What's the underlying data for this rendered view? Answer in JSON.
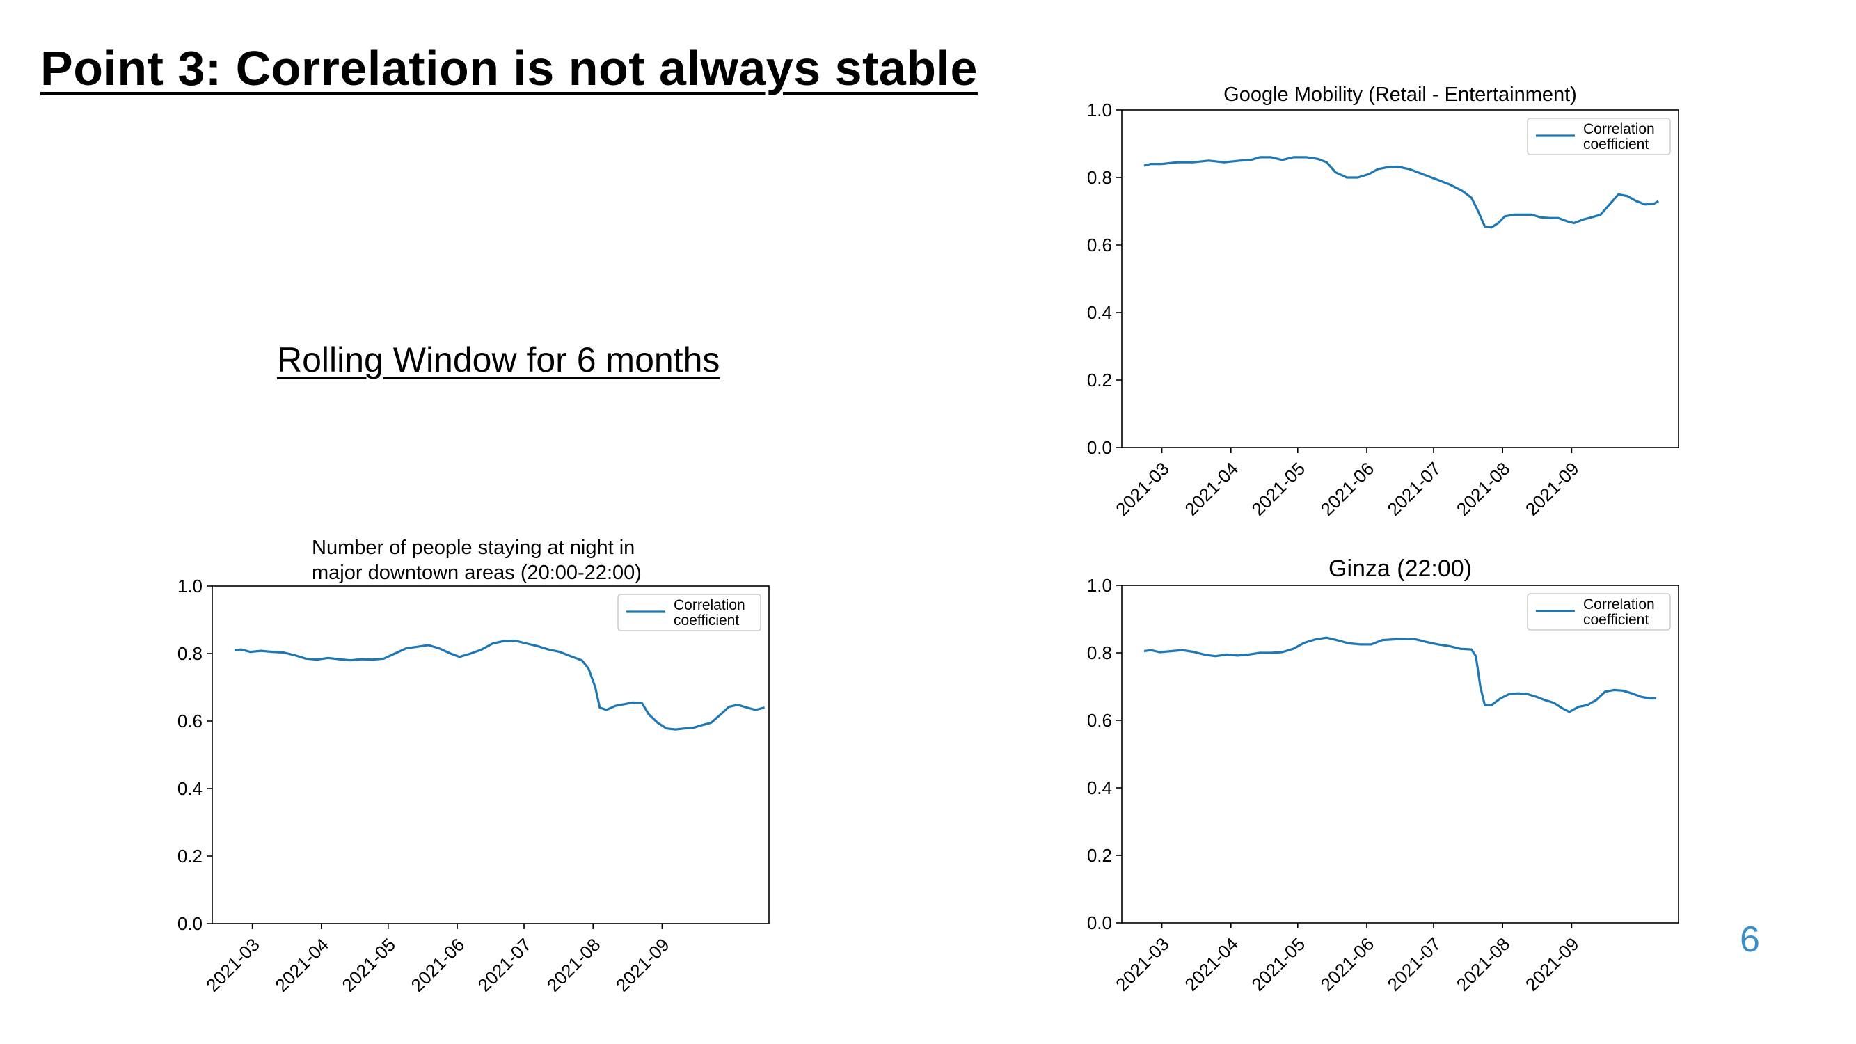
{
  "slide": {
    "title": "Point 3: Correlation is not always stable",
    "subtitle": "Rolling Window for 6 months",
    "page_number": "6",
    "accent_color": "#3b8fc9"
  },
  "chart_data": [
    {
      "type": "line",
      "title": "Google Mobility (Retail - Entertainment)",
      "title_lines": [],
      "xlabel": "",
      "ylabel": "",
      "ylim": [
        0.0,
        1.0
      ],
      "yticks": [
        "0.0",
        "0.2",
        "0.4",
        "0.6",
        "0.8",
        "1.0"
      ],
      "xticks": [
        "2021-03",
        "2021-04",
        "2021-05",
        "2021-06",
        "2021-07",
        "2021-08",
        "2021-09"
      ],
      "grid": false,
      "legend": {
        "position": "top-right",
        "entries": [
          "Correlation",
          "coefficient"
        ]
      },
      "series_color": "#1f77b4",
      "series": [
        {
          "name": "Correlation coefficient",
          "points": [
            [
              "2021-02-21",
              0.835
            ],
            [
              "2021-02-24",
              0.84
            ],
            [
              "2021-03-01",
              0.84
            ],
            [
              "2021-03-08",
              0.845
            ],
            [
              "2021-03-15",
              0.845
            ],
            [
              "2021-03-22",
              0.85
            ],
            [
              "2021-03-29",
              0.845
            ],
            [
              "2021-04-05",
              0.85
            ],
            [
              "2021-04-10",
              0.852
            ],
            [
              "2021-04-14",
              0.86
            ],
            [
              "2021-04-19",
              0.86
            ],
            [
              "2021-04-24",
              0.852
            ],
            [
              "2021-04-29",
              0.86
            ],
            [
              "2021-05-05",
              0.86
            ],
            [
              "2021-05-10",
              0.855
            ],
            [
              "2021-05-14",
              0.845
            ],
            [
              "2021-05-18",
              0.815
            ],
            [
              "2021-05-23",
              0.8
            ],
            [
              "2021-05-28",
              0.8
            ],
            [
              "2021-06-02",
              0.81
            ],
            [
              "2021-06-06",
              0.825
            ],
            [
              "2021-06-10",
              0.83
            ],
            [
              "2021-06-15",
              0.832
            ],
            [
              "2021-06-20",
              0.825
            ],
            [
              "2021-06-26",
              0.81
            ],
            [
              "2021-07-02",
              0.795
            ],
            [
              "2021-07-08",
              0.78
            ],
            [
              "2021-07-14",
              0.76
            ],
            [
              "2021-07-18",
              0.74
            ],
            [
              "2021-07-21",
              0.7
            ],
            [
              "2021-07-24",
              0.655
            ],
            [
              "2021-07-27",
              0.652
            ],
            [
              "2021-07-30",
              0.665
            ],
            [
              "2021-08-02",
              0.685
            ],
            [
              "2021-08-06",
              0.69
            ],
            [
              "2021-08-10",
              0.69
            ],
            [
              "2021-08-14",
              0.69
            ],
            [
              "2021-08-18",
              0.682
            ],
            [
              "2021-08-22",
              0.68
            ],
            [
              "2021-08-26",
              0.68
            ],
            [
              "2021-08-30",
              0.67
            ],
            [
              "2021-09-02",
              0.665
            ],
            [
              "2021-09-06",
              0.675
            ],
            [
              "2021-09-10",
              0.682
            ],
            [
              "2021-09-14",
              0.69
            ],
            [
              "2021-09-18",
              0.72
            ],
            [
              "2021-09-22",
              0.75
            ],
            [
              "2021-09-26",
              0.745
            ],
            [
              "2021-09-30",
              0.73
            ],
            [
              "2021-10-04",
              0.72
            ],
            [
              "2021-10-08",
              0.722
            ],
            [
              "2021-10-10",
              0.73
            ]
          ]
        }
      ]
    },
    {
      "type": "line",
      "title": "",
      "title_lines": [
        "Number of people staying at night in",
        "major downtown areas (20:00-22:00)"
      ],
      "xlabel": "",
      "ylabel": "",
      "ylim": [
        0.0,
        1.0
      ],
      "yticks": [
        "0.0",
        "0.2",
        "0.4",
        "0.6",
        "0.8",
        "1.0"
      ],
      "xticks": [
        "2021-03",
        "2021-04",
        "2021-05",
        "2021-06",
        "2021-07",
        "2021-08",
        "2021-09"
      ],
      "grid": false,
      "legend": {
        "position": "top-right",
        "entries": [
          "Correlation",
          "coefficient"
        ]
      },
      "series_color": "#1f77b4",
      "series": [
        {
          "name": "Correlation coefficient",
          "points": [
            [
              "2021-02-21",
              0.81
            ],
            [
              "2021-02-24",
              0.812
            ],
            [
              "2021-02-28",
              0.805
            ],
            [
              "2021-03-05",
              0.808
            ],
            [
              "2021-03-10",
              0.805
            ],
            [
              "2021-03-15",
              0.803
            ],
            [
              "2021-03-20",
              0.795
            ],
            [
              "2021-03-25",
              0.785
            ],
            [
              "2021-03-30",
              0.782
            ],
            [
              "2021-04-04",
              0.787
            ],
            [
              "2021-04-09",
              0.783
            ],
            [
              "2021-04-14",
              0.78
            ],
            [
              "2021-04-19",
              0.783
            ],
            [
              "2021-04-24",
              0.782
            ],
            [
              "2021-04-29",
              0.785
            ],
            [
              "2021-05-04",
              0.8
            ],
            [
              "2021-05-09",
              0.815
            ],
            [
              "2021-05-14",
              0.82
            ],
            [
              "2021-05-19",
              0.825
            ],
            [
              "2021-05-24",
              0.815
            ],
            [
              "2021-05-29",
              0.8
            ],
            [
              "2021-06-02",
              0.79
            ],
            [
              "2021-06-07",
              0.8
            ],
            [
              "2021-06-12",
              0.812
            ],
            [
              "2021-06-17",
              0.83
            ],
            [
              "2021-06-22",
              0.837
            ],
            [
              "2021-06-27",
              0.838
            ],
            [
              "2021-07-02",
              0.83
            ],
            [
              "2021-07-07",
              0.822
            ],
            [
              "2021-07-12",
              0.812
            ],
            [
              "2021-07-17",
              0.805
            ],
            [
              "2021-07-22",
              0.792
            ],
            [
              "2021-07-27",
              0.78
            ],
            [
              "2021-07-30",
              0.755
            ],
            [
              "2021-08-02",
              0.7
            ],
            [
              "2021-08-04",
              0.64
            ],
            [
              "2021-08-07",
              0.633
            ],
            [
              "2021-08-11",
              0.645
            ],
            [
              "2021-08-15",
              0.65
            ],
            [
              "2021-08-19",
              0.655
            ],
            [
              "2021-08-23",
              0.653
            ],
            [
              "2021-08-26",
              0.62
            ],
            [
              "2021-08-30",
              0.595
            ],
            [
              "2021-09-03",
              0.578
            ],
            [
              "2021-09-07",
              0.575
            ],
            [
              "2021-09-11",
              0.578
            ],
            [
              "2021-09-15",
              0.58
            ],
            [
              "2021-09-19",
              0.588
            ],
            [
              "2021-09-23",
              0.595
            ],
            [
              "2021-09-27",
              0.618
            ],
            [
              "2021-10-01",
              0.642
            ],
            [
              "2021-10-05",
              0.648
            ],
            [
              "2021-10-09",
              0.64
            ],
            [
              "2021-10-13",
              0.633
            ],
            [
              "2021-10-17",
              0.64
            ]
          ]
        }
      ]
    },
    {
      "type": "line",
      "title": "Ginza (22:00)",
      "title_lines": [],
      "xlabel": "",
      "ylabel": "",
      "ylim": [
        0.0,
        1.0
      ],
      "yticks": [
        "0.0",
        "0.2",
        "0.4",
        "0.6",
        "0.8",
        "1.0"
      ],
      "xticks": [
        "2021-03",
        "2021-04",
        "2021-05",
        "2021-06",
        "2021-07",
        "2021-08",
        "2021-09"
      ],
      "grid": false,
      "legend": {
        "position": "top-right",
        "entries": [
          "Correlation",
          "coefficient"
        ]
      },
      "series_color": "#1f77b4",
      "series": [
        {
          "name": "Correlation coefficient",
          "points": [
            [
              "2021-02-21",
              0.805
            ],
            [
              "2021-02-24",
              0.808
            ],
            [
              "2021-02-28",
              0.802
            ],
            [
              "2021-03-05",
              0.805
            ],
            [
              "2021-03-10",
              0.808
            ],
            [
              "2021-03-15",
              0.803
            ],
            [
              "2021-03-20",
              0.795
            ],
            [
              "2021-03-25",
              0.79
            ],
            [
              "2021-03-30",
              0.795
            ],
            [
              "2021-04-04",
              0.792
            ],
            [
              "2021-04-09",
              0.795
            ],
            [
              "2021-04-14",
              0.8
            ],
            [
              "2021-04-19",
              0.8
            ],
            [
              "2021-04-24",
              0.802
            ],
            [
              "2021-04-29",
              0.812
            ],
            [
              "2021-05-04",
              0.83
            ],
            [
              "2021-05-09",
              0.84
            ],
            [
              "2021-05-14",
              0.845
            ],
            [
              "2021-05-19",
              0.837
            ],
            [
              "2021-05-24",
              0.828
            ],
            [
              "2021-05-29",
              0.825
            ],
            [
              "2021-06-03",
              0.825
            ],
            [
              "2021-06-08",
              0.838
            ],
            [
              "2021-06-13",
              0.84
            ],
            [
              "2021-06-18",
              0.842
            ],
            [
              "2021-06-23",
              0.84
            ],
            [
              "2021-06-28",
              0.832
            ],
            [
              "2021-07-03",
              0.825
            ],
            [
              "2021-07-08",
              0.82
            ],
            [
              "2021-07-13",
              0.812
            ],
            [
              "2021-07-18",
              0.81
            ],
            [
              "2021-07-20",
              0.79
            ],
            [
              "2021-07-22",
              0.7
            ],
            [
              "2021-07-24",
              0.645
            ],
            [
              "2021-07-27",
              0.645
            ],
            [
              "2021-07-31",
              0.665
            ],
            [
              "2021-08-04",
              0.678
            ],
            [
              "2021-08-08",
              0.68
            ],
            [
              "2021-08-12",
              0.678
            ],
            [
              "2021-08-16",
              0.67
            ],
            [
              "2021-08-20",
              0.66
            ],
            [
              "2021-08-24",
              0.652
            ],
            [
              "2021-08-28",
              0.635
            ],
            [
              "2021-08-31",
              0.625
            ],
            [
              "2021-09-04",
              0.64
            ],
            [
              "2021-09-08",
              0.645
            ],
            [
              "2021-09-12",
              0.66
            ],
            [
              "2021-09-16",
              0.685
            ],
            [
              "2021-09-20",
              0.69
            ],
            [
              "2021-09-24",
              0.688
            ],
            [
              "2021-09-28",
              0.68
            ],
            [
              "2021-10-02",
              0.67
            ],
            [
              "2021-10-06",
              0.665
            ],
            [
              "2021-10-09",
              0.665
            ]
          ]
        }
      ]
    }
  ]
}
